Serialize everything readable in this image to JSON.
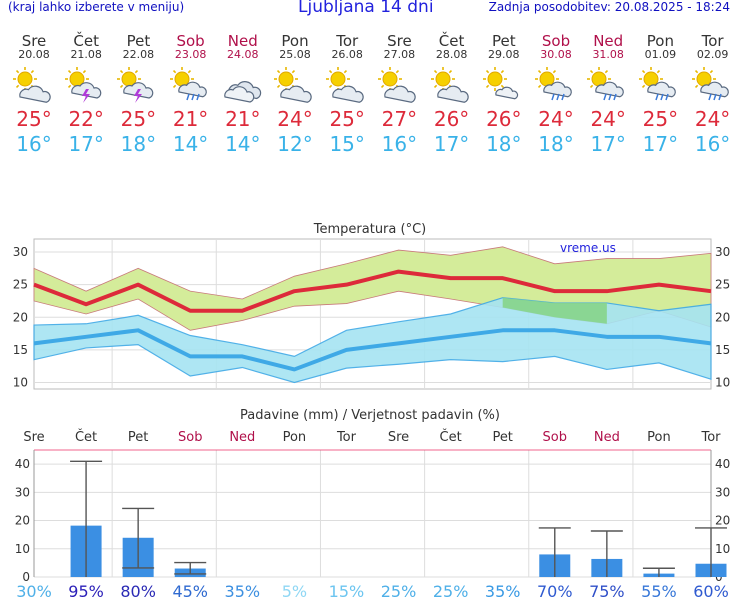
{
  "header": {
    "hint": "(kraj lahko izberete v meniju)",
    "title": "Ljubljana 14 dni",
    "updated": "Zadnja posodobitev: 20.08.2025 - 18:24"
  },
  "days": [
    {
      "name": "Sre",
      "date": "20.08",
      "weekend": false,
      "icon": "partly-cloudy-icon",
      "tmax": "25°",
      "tmin": "16°"
    },
    {
      "name": "Čet",
      "date": "21.08",
      "weekend": false,
      "icon": "thunderstorm-sun-icon",
      "tmax": "22°",
      "tmin": "17°"
    },
    {
      "name": "Pet",
      "date": "22.08",
      "weekend": false,
      "icon": "thunderstorm-sun-icon",
      "tmax": "25°",
      "tmin": "18°"
    },
    {
      "name": "Sob",
      "date": "23.08",
      "weekend": true,
      "icon": "sun-cloud-rain-icon",
      "tmax": "21°",
      "tmin": "14°"
    },
    {
      "name": "Ned",
      "date": "24.08",
      "weekend": true,
      "icon": "cloudy-icon",
      "tmax": "21°",
      "tmin": "14°"
    },
    {
      "name": "Pon",
      "date": "25.08",
      "weekend": false,
      "icon": "partly-cloudy-icon",
      "tmax": "24°",
      "tmin": "12°"
    },
    {
      "name": "Tor",
      "date": "26.08",
      "weekend": false,
      "icon": "partly-cloudy-icon",
      "tmax": "25°",
      "tmin": "15°"
    },
    {
      "name": "Sre",
      "date": "27.08",
      "weekend": false,
      "icon": "partly-cloudy-icon",
      "tmax": "27°",
      "tmin": "16°"
    },
    {
      "name": "Čet",
      "date": "28.08",
      "weekend": false,
      "icon": "partly-cloudy-icon",
      "tmax": "26°",
      "tmin": "17°"
    },
    {
      "name": "Pet",
      "date": "29.08",
      "weekend": false,
      "icon": "sunny-cloud-icon",
      "tmax": "26°",
      "tmin": "18°"
    },
    {
      "name": "Sob",
      "date": "30.08",
      "weekend": true,
      "icon": "sun-cloud-rain-icon",
      "tmax": "24°",
      "tmin": "18°"
    },
    {
      "name": "Ned",
      "date": "31.08",
      "weekend": true,
      "icon": "sun-cloud-rain-icon",
      "tmax": "24°",
      "tmin": "17°"
    },
    {
      "name": "Pon",
      "date": "01.09",
      "weekend": false,
      "icon": "sun-cloud-rain-icon",
      "tmax": "25°",
      "tmin": "17°"
    },
    {
      "name": "Tor",
      "date": "02.09",
      "weekend": false,
      "icon": "sun-cloud-rain-icon",
      "tmax": "24°",
      "tmin": "16°"
    }
  ],
  "chart_data": [
    {
      "type": "line",
      "title": "Temperatura (°C)",
      "watermark": "vreme.us",
      "ylim": [
        9,
        32
      ],
      "yticks": [
        10,
        15,
        20,
        25,
        30
      ],
      "grid": true,
      "colors": {
        "max": "#dd2a3a",
        "min": "#3fa9e6",
        "max_band": "#d4ec9a",
        "min_band": "#a6e4f2",
        "overlap": "#86d48a"
      },
      "series": [
        {
          "values": [
            25,
            22,
            25,
            21,
            21,
            24,
            25,
            27,
            26,
            26,
            24,
            24,
            25,
            24
          ]
        },
        {
          "values": [
            27.5,
            24,
            27.5,
            24,
            22.8,
            26.3,
            28.2,
            30.3,
            29.5,
            30.8,
            28.2,
            29,
            29,
            29.8
          ]
        },
        {
          "values": [
            22.5,
            20.5,
            22.8,
            18,
            19.5,
            21.7,
            22.1,
            24,
            22.8,
            21.5,
            20,
            19,
            21,
            18.5
          ]
        },
        {
          "values": [
            16,
            17,
            18,
            14,
            14,
            12,
            15,
            16,
            17,
            18,
            18,
            17,
            17,
            16
          ]
        },
        {
          "values": [
            18.8,
            19,
            20.3,
            17.2,
            15.8,
            14,
            18,
            19.3,
            20.5,
            23,
            22.2,
            22.2,
            21,
            22
          ]
        },
        {
          "values": [
            13.5,
            15.3,
            15.8,
            11,
            12.3,
            10,
            12.2,
            12.8,
            13.5,
            13.2,
            14,
            12,
            13,
            10.5
          ]
        }
      ]
    },
    {
      "type": "bar",
      "title": "Padavine (mm) / Verjetnost padavin (%)",
      "categories": [
        "Sre",
        "Čet",
        "Pet",
        "Sob",
        "Ned",
        "Pon",
        "Tor",
        "Sre",
        "Čet",
        "Pet",
        "Sob",
        "Ned",
        "Pon",
        "Tor"
      ],
      "weekend": [
        false,
        false,
        false,
        true,
        true,
        false,
        false,
        false,
        false,
        false,
        true,
        true,
        false,
        false
      ],
      "ylim": [
        0,
        45
      ],
      "yticks": [
        0,
        10,
        20,
        30,
        40
      ],
      "values": [
        0,
        18.2,
        13.9,
        3.0,
        0,
        0,
        0,
        0,
        0,
        0,
        8.0,
        6.4,
        1.2,
        4.7
      ],
      "errors": [
        null,
        [
          0,
          41
        ],
        [
          3.2,
          24.3
        ],
        [
          1.1,
          5.1
        ],
        null,
        null,
        null,
        null,
        null,
        null,
        [
          0,
          17.4
        ],
        [
          0,
          16.3
        ],
        [
          0,
          3.1
        ],
        [
          0,
          17.4
        ]
      ],
      "probability": [
        "30%",
        "95%",
        "80%",
        "45%",
        "35%",
        "5%",
        "15%",
        "25%",
        "25%",
        "35%",
        "70%",
        "75%",
        "55%",
        "60%"
      ],
      "prob_colors": [
        "#4fb0e8",
        "#2a1fb8",
        "#2a2ab5",
        "#2f6ad0",
        "#3c8fe0",
        "#8fd7f4",
        "#6cc5f0",
        "#4fb0e8",
        "#4fb0e8",
        "#3a9ae4",
        "#2f5ad0",
        "#2f4fc8",
        "#3777d8",
        "#2f5ad0"
      ],
      "bar_color": "#3b8fe3"
    }
  ]
}
